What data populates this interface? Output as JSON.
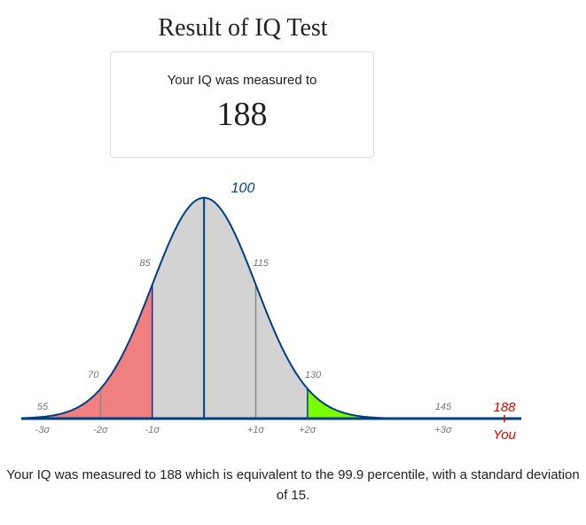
{
  "page": {
    "title": "Result of IQ Test"
  },
  "result_card": {
    "label": "Your IQ was measured to",
    "value": "188"
  },
  "chart_data": {
    "type": "area",
    "title": "",
    "distribution": "normal",
    "mean": 100,
    "std_dev": 15,
    "x_range": [
      47,
      192
    ],
    "score_labels": [
      "55",
      "70",
      "85",
      "100",
      "115",
      "130",
      "145"
    ],
    "score_values": [
      55,
      70,
      85,
      100,
      115,
      130,
      145
    ],
    "sigma_labels": [
      "-3σ",
      "-2σ",
      "-1σ",
      "+1σ",
      "+2σ",
      "+3σ"
    ],
    "sigma_values": [
      55,
      70,
      85,
      115,
      130,
      145
    ],
    "shaded_regions": [
      {
        "from": 47,
        "to": 85,
        "color": "#f08080"
      },
      {
        "from": 85,
        "to": 130,
        "color": "#d3d3d3"
      },
      {
        "from": 130,
        "to": 192,
        "color": "#7cfc00"
      }
    ],
    "user_score": 188,
    "user_score_label": "188",
    "user_marker_label": "You",
    "colors": {
      "curve": "#003f7f",
      "user": "#e00000",
      "label": "#777777",
      "mean_label": "#003f7f"
    }
  },
  "summary": {
    "text": "Your IQ was measured to 188 which is equivalent to the 99.9 percentile, with a standard deviation of 15."
  }
}
